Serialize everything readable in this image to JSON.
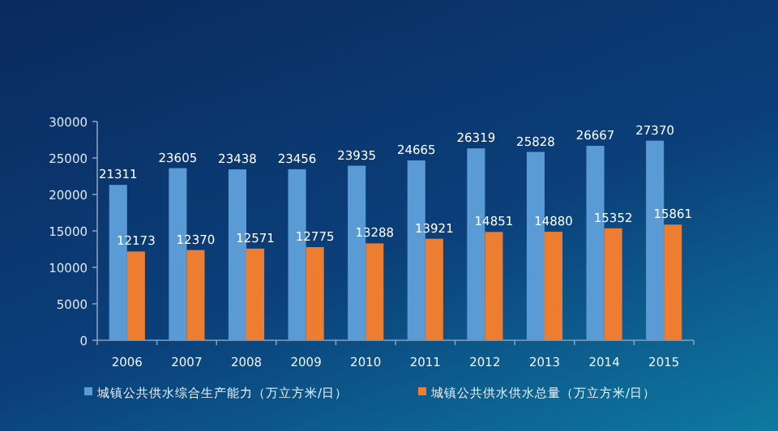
{
  "chart_data": {
    "type": "bar",
    "categories": [
      "2006",
      "2007",
      "2008",
      "2009",
      "2010",
      "2011",
      "2012",
      "2013",
      "2014",
      "2015"
    ],
    "series": [
      {
        "name": "城镇公共供水综合生产能力（万立方米/日）",
        "color": "#5b9bd5",
        "values": [
          21311,
          23605,
          23438,
          23456,
          23935,
          24665,
          26319,
          25828,
          26667,
          27370
        ]
      },
      {
        "name": "城镇公共供水供水总量（万立方米/日）",
        "color": "#ed7d31",
        "values": [
          12173,
          12370,
          12571,
          12775,
          13288,
          13921,
          14851,
          14880,
          15352,
          15861
        ]
      }
    ],
    "ylim": [
      0,
      30000
    ],
    "yticks": [
      0,
      5000,
      10000,
      15000,
      20000,
      25000,
      30000
    ],
    "data_labels": true,
    "grid": false,
    "legend": "bottom"
  }
}
